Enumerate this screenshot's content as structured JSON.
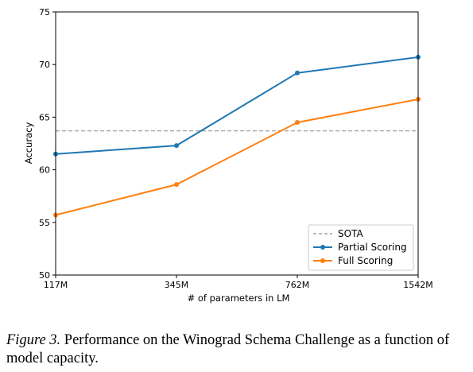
{
  "chart_data": {
    "type": "line",
    "xlabel": "# of parameters in LM",
    "ylabel": "Accuracy",
    "categories": [
      "117M",
      "345M",
      "762M",
      "1542M"
    ],
    "ylim": [
      50,
      75
    ],
    "yticks": [
      50,
      55,
      60,
      65,
      70,
      75
    ],
    "grid": false,
    "legend_position": "bottom-right",
    "reference_line": {
      "name": "SOTA",
      "value": 63.7,
      "color": "#a0a0a0",
      "style": "dashed"
    },
    "series": [
      {
        "name": "Partial Scoring",
        "color": "#1f77b4",
        "values": [
          61.5,
          62.3,
          69.2,
          70.7
        ]
      },
      {
        "name": "Full Scoring",
        "color": "#ff7f0e",
        "values": [
          55.7,
          58.6,
          64.5,
          66.7
        ]
      }
    ]
  },
  "caption": {
    "label": "Figure 3.",
    "text": " Performance on the Winograd Schema Challenge as a function of model capacity."
  }
}
